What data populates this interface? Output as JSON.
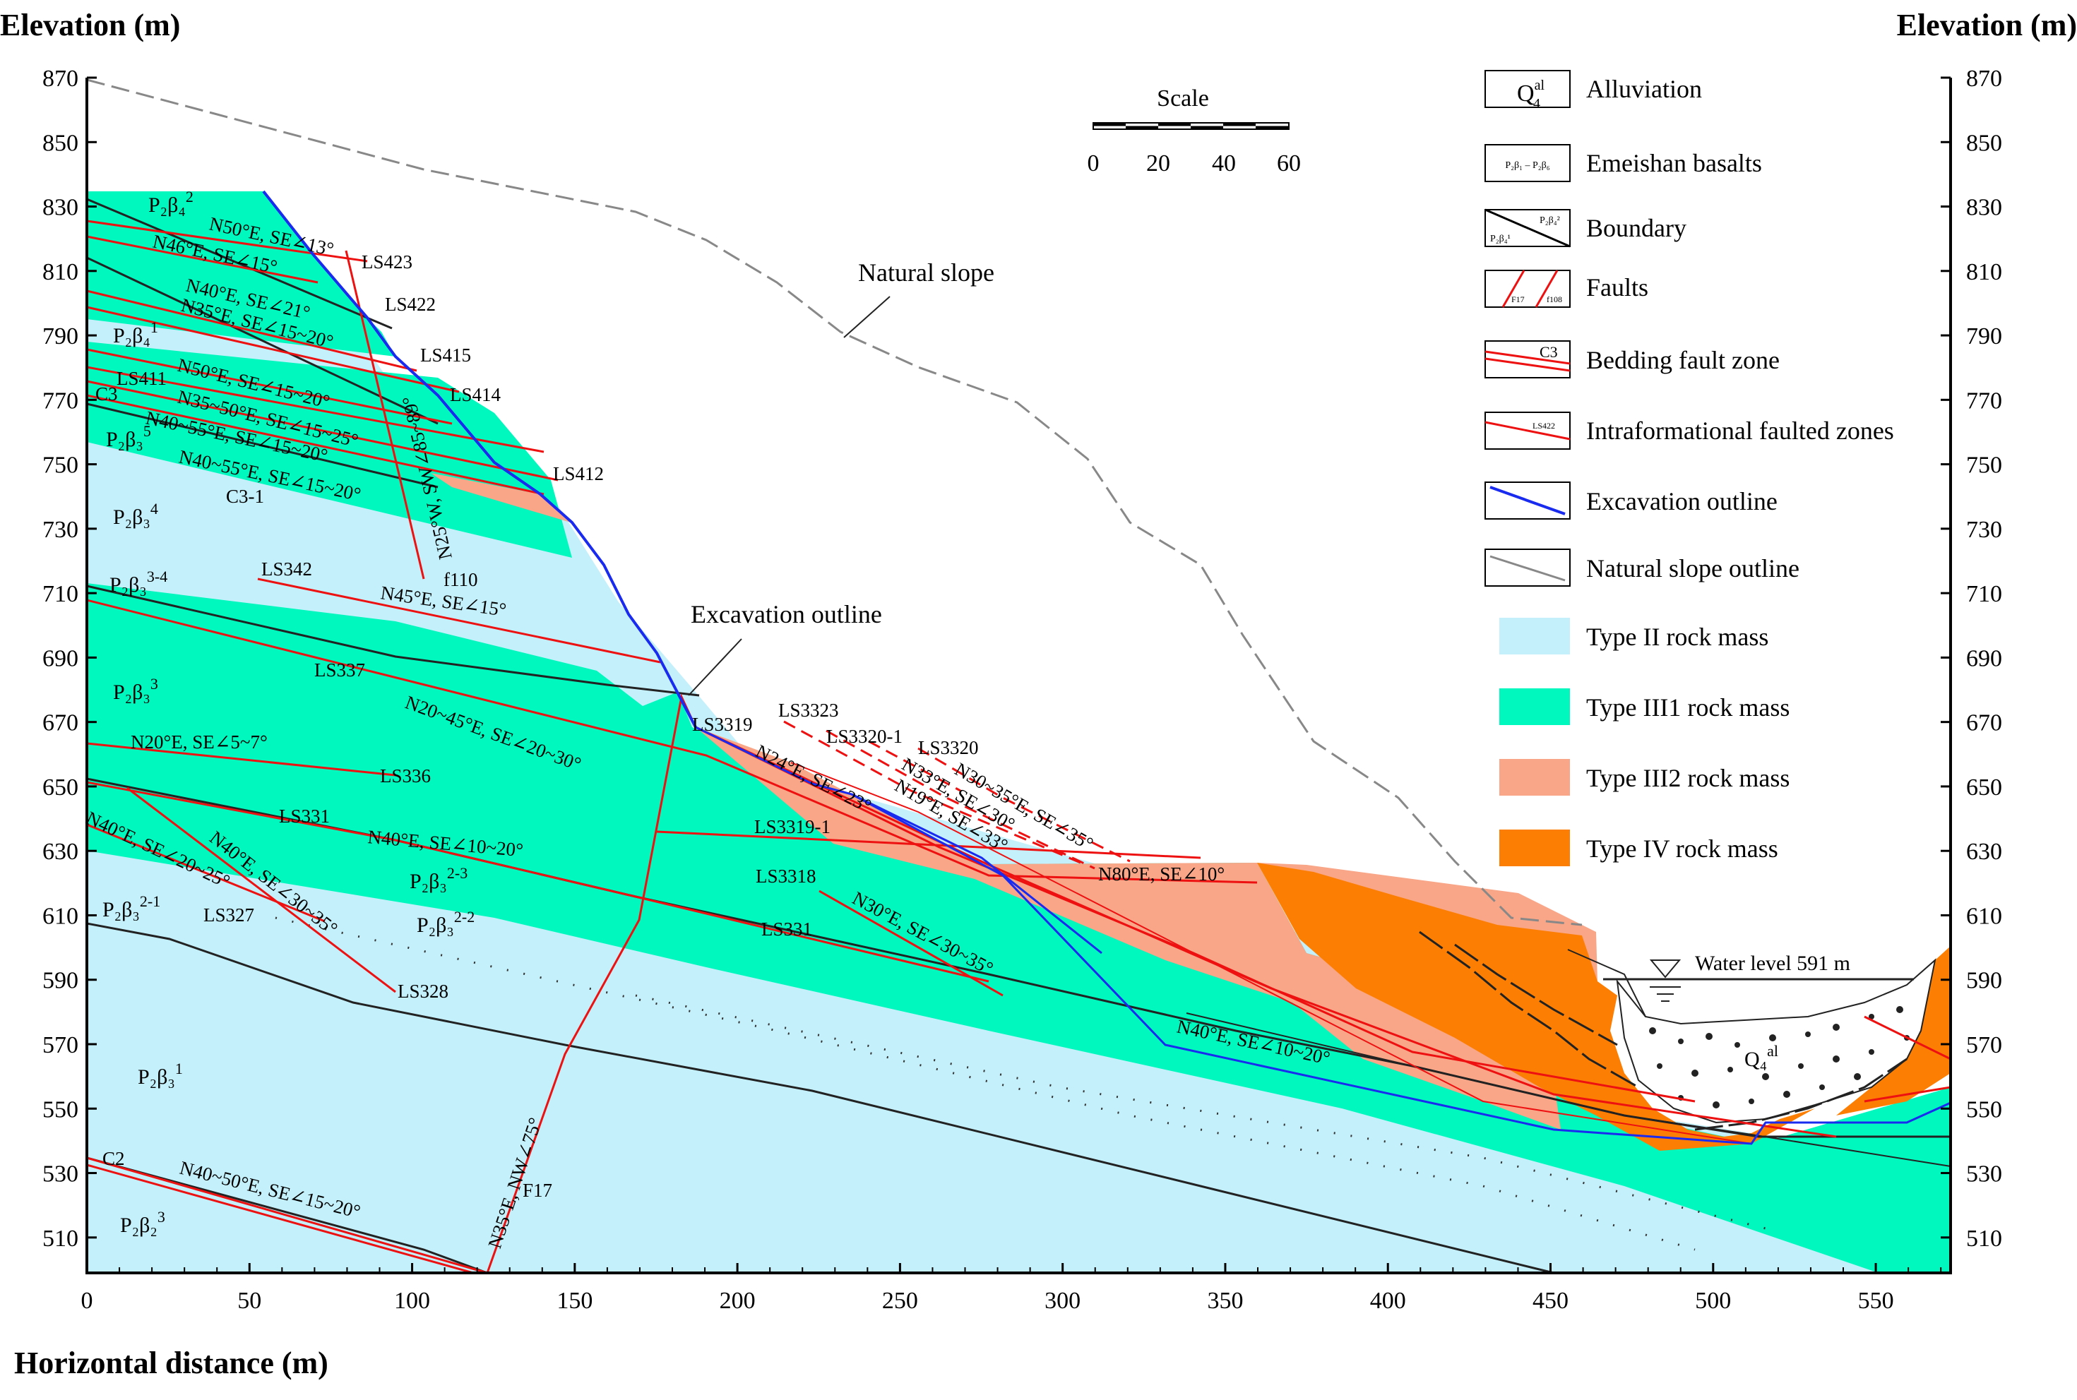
{
  "axes": {
    "y_title_left": "Elevation (m)",
    "y_title_right": "Elevation (m)",
    "x_title": "Horizontal distance (m)",
    "y_ticks": [
      870,
      850,
      830,
      810,
      790,
      770,
      750,
      730,
      710,
      690,
      670,
      650,
      630,
      610,
      590,
      570,
      550,
      530,
      510
    ],
    "x_ticks": [
      0,
      50,
      100,
      150,
      200,
      250,
      300,
      350,
      400,
      450,
      500,
      550
    ],
    "xlim": [
      0,
      573
    ],
    "ylim": [
      499,
      870
    ]
  },
  "scale": {
    "title": "Scale",
    "ticks": [
      "0",
      "20",
      "40",
      "60"
    ]
  },
  "legend": {
    "alluviation": "Alluviation",
    "basalts": "Emeishan basalts",
    "boundary": "Boundary",
    "faults": "Faults",
    "bedding_fault": "Bedding fault zone",
    "intraformational": "Intraformational faulted zones",
    "excavation": "Excavation outline",
    "natural": "Natural slope outline",
    "type2": "Type II rock mass",
    "type31": "Type III1 rock mass",
    "type32": "Type III2 rock mass",
    "type4": "Type IV rock mass"
  },
  "legend_symbols": {
    "q4_main": "Q",
    "q4_sup": "al",
    "q4_sub": "4",
    "basalt_sym": "P₂β₁ – P₂β₆",
    "boundary_a": "P₂β₄²",
    "boundary_b": "P₂β₄¹",
    "fault_a": "F17",
    "fault_b": "f108",
    "bedding_sym": "C3",
    "intra_sym": "LS422"
  },
  "colors": {
    "type2": "#c4f0fb",
    "type31": "#00f7be",
    "type32": "#f9a688",
    "type4": "#fc7f03",
    "fault": "#ee1111",
    "excavation": "#1a2bf0",
    "natural": "#888888",
    "boundary": "#222222"
  },
  "annotations": {
    "natural_slope": "Natural slope",
    "excavation_outline": "Excavation outline",
    "water_level": "Water level 591 m"
  },
  "labels": {
    "ls423": "LS423",
    "ls422": "LS422",
    "ls415": "LS415",
    "ls414": "LS414",
    "ls411": "LS411",
    "ls412": "LS412",
    "ls342": "LS342",
    "ls337": "LS337",
    "ls336": "LS336",
    "ls331a": "LS331",
    "ls331b": "LS331",
    "ls327": "LS327",
    "ls328": "LS328",
    "ls3319": "LS3319",
    "ls3323": "LS3323",
    "ls3320_1": "LS3320-1",
    "ls3320": "LS3320",
    "ls3319_1": "LS3319-1",
    "ls3318": "LS3318",
    "c3": "C3",
    "c3_1": "C3-1",
    "c2": "C2",
    "f110": "f110",
    "f17": "F17",
    "o1": "N50°E, SE∠13°",
    "o2": "N46°E, SE∠15°",
    "o3": "N40°E, SE∠21°",
    "o4": "N35°E, SE∠15~20°",
    "o5": "N50°E, SE∠15~20°",
    "o6": "N35~50°E, SE∠15~25°",
    "o7": "N40~55°E, SE∠15~20°",
    "o8": "N40~55°E, SE∠15~20°",
    "o9": "N25°W, SW∠85~89°",
    "o10": "N45°E, SE∠15°",
    "o11": "N20~45°E, SE∠20~30°",
    "o12": "N20°E, SE∠5~7°",
    "o13": "N40°E, SE∠10~20°",
    "o14": "N40°E, SE∠20~25°",
    "o15": "N40°E, SE∠30~35°",
    "o16": "N24°E, SE∠23°",
    "o17": "N33°E, SE∠30°",
    "o18": "N19°E, SE∠33°",
    "o19": "N30~35°E, SE∠35°",
    "o20": "N80°E, SE∠10°",
    "o21": "N30°E, SE∠30~35°",
    "o22": "N40°E, SE∠10~20°",
    "o23": "N35°E, NW∠75°",
    "o24": "N40~50°E, SE∠15~20°"
  },
  "units": [
    {
      "sym": "P₂β₄",
      "sup": "2"
    },
    {
      "sym": "P₂β₄",
      "sup": "1"
    },
    {
      "sym": "P₂β₃",
      "sup": "5"
    },
    {
      "sym": "P₂β₃",
      "sup": "4"
    },
    {
      "sym": "P₂β₃",
      "sup": "3-4"
    },
    {
      "sym": "P₂β₃",
      "sup": "3"
    },
    {
      "sym": "P₂β₃",
      "sup": "2-3"
    },
    {
      "sym": "P₂β₃",
      "sup": "2-2"
    },
    {
      "sym": "P₂β₃",
      "sup": "2-1"
    },
    {
      "sym": "P₂β₃",
      "sup": "1"
    },
    {
      "sym": "P₂β₂",
      "sup": "3"
    },
    {
      "sym": "Q₄",
      "sup": "al"
    }
  ]
}
